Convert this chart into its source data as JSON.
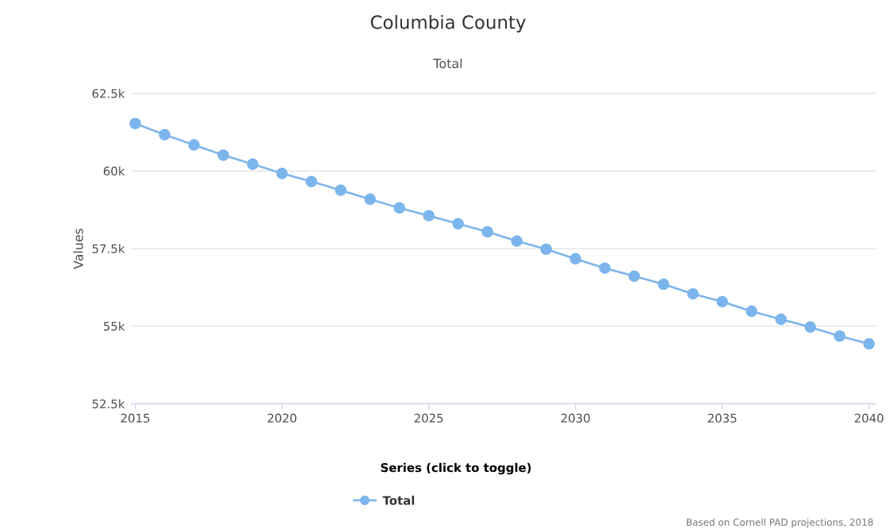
{
  "chart_data": {
    "type": "line",
    "title": "Columbia County",
    "subtitle": "Total",
    "ylabel": "Values",
    "legend_title": "Series (click to toggle)",
    "x": [
      2015,
      2016,
      2017,
      2018,
      2019,
      2020,
      2021,
      2022,
      2023,
      2024,
      2025,
      2026,
      2027,
      2028,
      2029,
      2030,
      2031,
      2032,
      2033,
      2034,
      2035,
      2036,
      2037,
      2038,
      2039,
      2040
    ],
    "series": [
      {
        "name": "Total",
        "color": "#7cb5ec",
        "values": [
          61530,
          61170,
          60840,
          60510,
          60220,
          59920,
          59660,
          59380,
          59090,
          58810,
          58560,
          58300,
          58040,
          57740,
          57480,
          57170,
          56870,
          56610,
          56350,
          56040,
          55790,
          55480,
          55220,
          54970,
          54680,
          54430
        ]
      }
    ],
    "xlim": [
      2014.85,
      2040.25
    ],
    "xticks": [
      2015,
      2020,
      2025,
      2030,
      2035,
      2040
    ],
    "ylim": [
      52500,
      62500
    ],
    "yticks": [
      {
        "value": 52500,
        "label": "52.5k"
      },
      {
        "value": 55000,
        "label": "55k"
      },
      {
        "value": 57500,
        "label": "57.5k"
      },
      {
        "value": 60000,
        "label": "60k"
      },
      {
        "value": 62500,
        "label": "62.5k"
      }
    ],
    "grid": "y",
    "legend": "bottom",
    "marker": "circle",
    "line_style": "solid",
    "annotations": [
      "Based on Cornell PAD projections, 2018"
    ]
  }
}
